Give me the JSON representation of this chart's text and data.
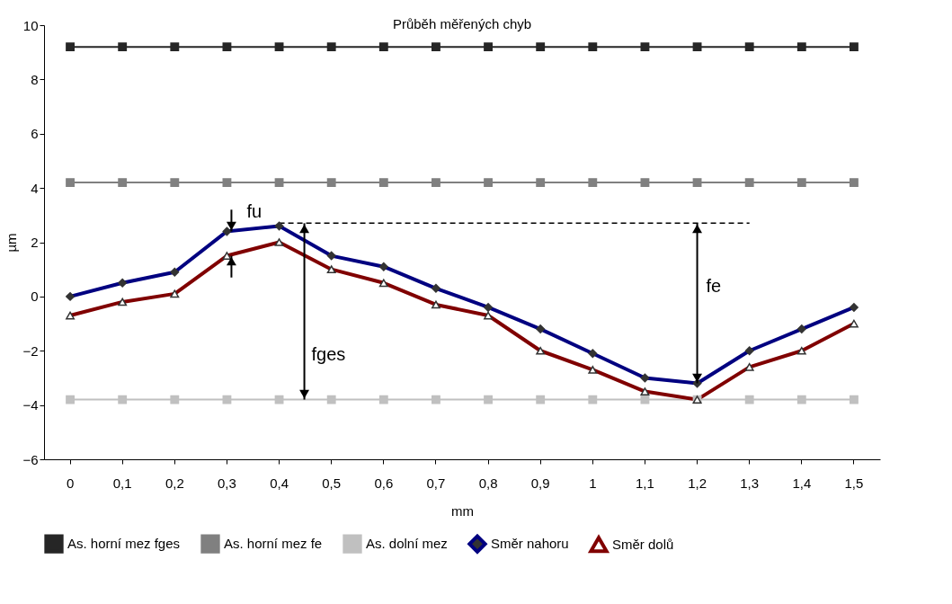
{
  "chart_data": {
    "type": "line",
    "title": "Průběh měřených chyb",
    "xlabel": "mm",
    "ylabel": "µm",
    "categories": [
      "0",
      "0,1",
      "0,2",
      "0,3",
      "0,4",
      "0,5",
      "0,6",
      "0,7",
      "0,8",
      "0,9",
      "1",
      "1,1",
      "1,2",
      "1,3",
      "1,4",
      "1,5"
    ],
    "series": [
      {
        "name": "As. horní mez fges",
        "color": "#262626",
        "marker": "square",
        "values": [
          9.2,
          9.2,
          9.2,
          9.2,
          9.2,
          9.2,
          9.2,
          9.2,
          9.2,
          9.2,
          9.2,
          9.2,
          9.2,
          9.2,
          9.2,
          9.2
        ]
      },
      {
        "name": "As. horní mez fe",
        "color": "#808080",
        "marker": "square",
        "values": [
          4.2,
          4.2,
          4.2,
          4.2,
          4.2,
          4.2,
          4.2,
          4.2,
          4.2,
          4.2,
          4.2,
          4.2,
          4.2,
          4.2,
          4.2,
          4.2
        ]
      },
      {
        "name": "As. dolní mez",
        "color": "#c0c0c0",
        "marker": "square",
        "values": [
          -3.8,
          -3.8,
          -3.8,
          -3.8,
          -3.8,
          -3.8,
          -3.8,
          -3.8,
          -3.8,
          -3.8,
          -3.8,
          -3.8,
          -3.8,
          -3.8,
          -3.8,
          -3.8
        ]
      },
      {
        "name": "Směr nahoru",
        "color": "#000080",
        "marker": "diamond",
        "values": [
          0,
          0.5,
          0.9,
          2.4,
          2.6,
          1.5,
          1.1,
          0.3,
          -0.4,
          -1.2,
          -2.1,
          -3.0,
          -3.2,
          -2.0,
          -1.2,
          -0.4
        ]
      },
      {
        "name": "Směr dolů",
        "color": "#800000",
        "marker": "triangle",
        "values": [
          -0.7,
          -0.2,
          0.1,
          1.5,
          2.0,
          1.0,
          0.5,
          -0.3,
          -0.7,
          -2.0,
          -2.7,
          -3.5,
          -3.8,
          -2.6,
          -2.0,
          -1.0
        ]
      },
      {
        "type": "line",
        "color": "#000000",
        "marker": "none",
        "line_style": "dashed",
        "x": [
          "0,4",
          "0,5",
          "0,6",
          "0,7",
          "0,8",
          "0,9",
          "1",
          "1,1",
          "1,2",
          "1,3"
        ],
        "values": [
          2.7,
          2.7,
          2.7,
          2.7,
          2.7,
          2.7,
          2.7,
          2.7,
          2.7,
          2.7
        ]
      }
    ],
    "ylim": [
      -6,
      10
    ],
    "yticks": [
      -6,
      -4,
      -2,
      0,
      2,
      4,
      6,
      8,
      10
    ],
    "grid": false,
    "legend": "bottom",
    "line_style": "solid",
    "annotations": [
      "fu",
      "fe",
      "fges"
    ]
  }
}
